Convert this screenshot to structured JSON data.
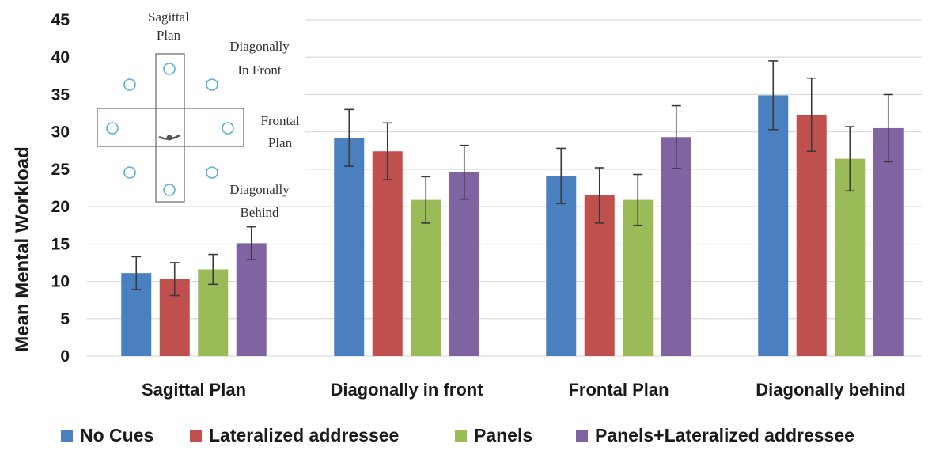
{
  "chart_data": {
    "type": "bar",
    "ylabel": "Mean Mental Workload",
    "xlabel": "",
    "ylim": [
      0,
      45
    ],
    "yticks": [
      0,
      5,
      10,
      15,
      20,
      25,
      30,
      35,
      40,
      45
    ],
    "grid": true,
    "legend_position": "bottom",
    "categories": [
      "Sagittal Plan",
      "Diagonally in front",
      "Frontal Plan",
      "Diagonally behind"
    ],
    "series": [
      {
        "name": "No Cues",
        "color": "#4a7fc0",
        "values": [
          11.1,
          29.2,
          24.1,
          34.9
        ],
        "error": [
          2.2,
          3.8,
          3.7,
          4.6
        ]
      },
      {
        "name": "Lateralized addressee",
        "color": "#c0504d",
        "values": [
          10.3,
          27.4,
          21.5,
          32.3
        ],
        "error": [
          2.2,
          3.8,
          3.7,
          4.9
        ]
      },
      {
        "name": "Panels",
        "color": "#9bbb59",
        "values": [
          11.6,
          20.9,
          20.9,
          26.4
        ],
        "error": [
          2.0,
          3.1,
          3.4,
          4.3
        ]
      },
      {
        "name": "Panels+Lateralized addressee",
        "color": "#8064a2",
        "values": [
          15.1,
          24.6,
          29.3,
          30.5
        ],
        "error": [
          2.2,
          3.6,
          4.2,
          4.5
        ]
      }
    ]
  },
  "inset": {
    "labels": {
      "sagittal_1": "Sagittal",
      "sagittal_2": "Plan",
      "diag_front_1": "Diagonally",
      "diag_front_2": "In Front",
      "frontal_1": "Frontal",
      "frontal_2": "Plan",
      "diag_behind_1": "Diagonally",
      "diag_behind_2": "Behind"
    },
    "circle_color": "#5ab0d8"
  }
}
